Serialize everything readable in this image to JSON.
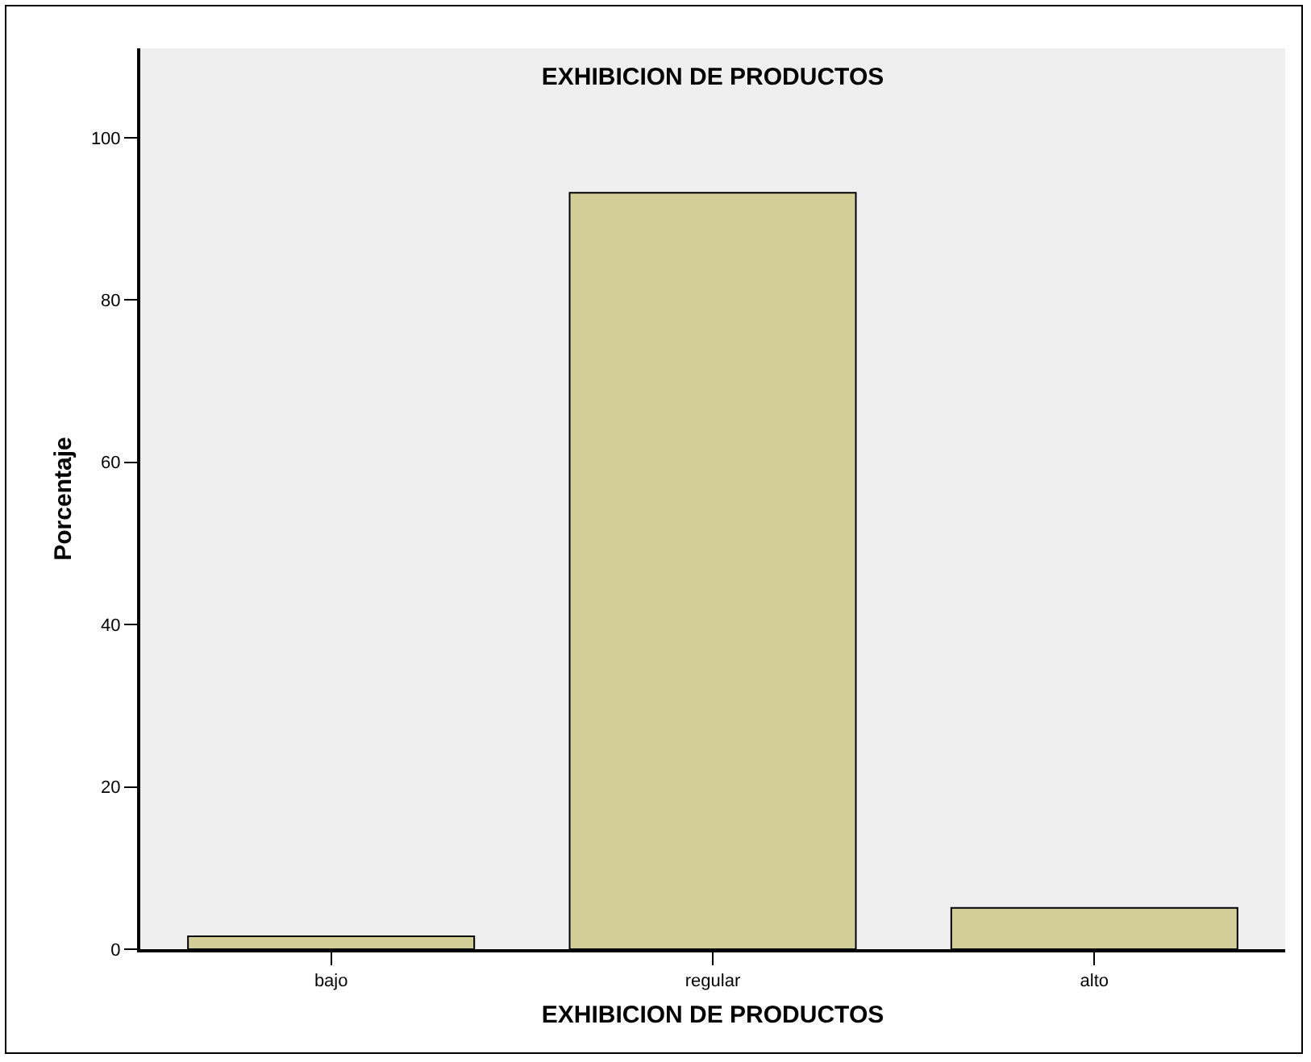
{
  "chart_data": {
    "type": "bar",
    "title": "EXHIBICION DE PRODUCTOS",
    "xlabel": "EXHIBICION DE PRODUCTOS",
    "ylabel": "Porcentaje",
    "categories": [
      "bajo",
      "regular",
      "alto"
    ],
    "values": [
      1.6,
      93.2,
      5.1
    ],
    "color": "#d3ce97",
    "ylim": [
      0,
      111
    ],
    "yticks": [
      0,
      20,
      40,
      60,
      80,
      100
    ],
    "grid": false
  }
}
